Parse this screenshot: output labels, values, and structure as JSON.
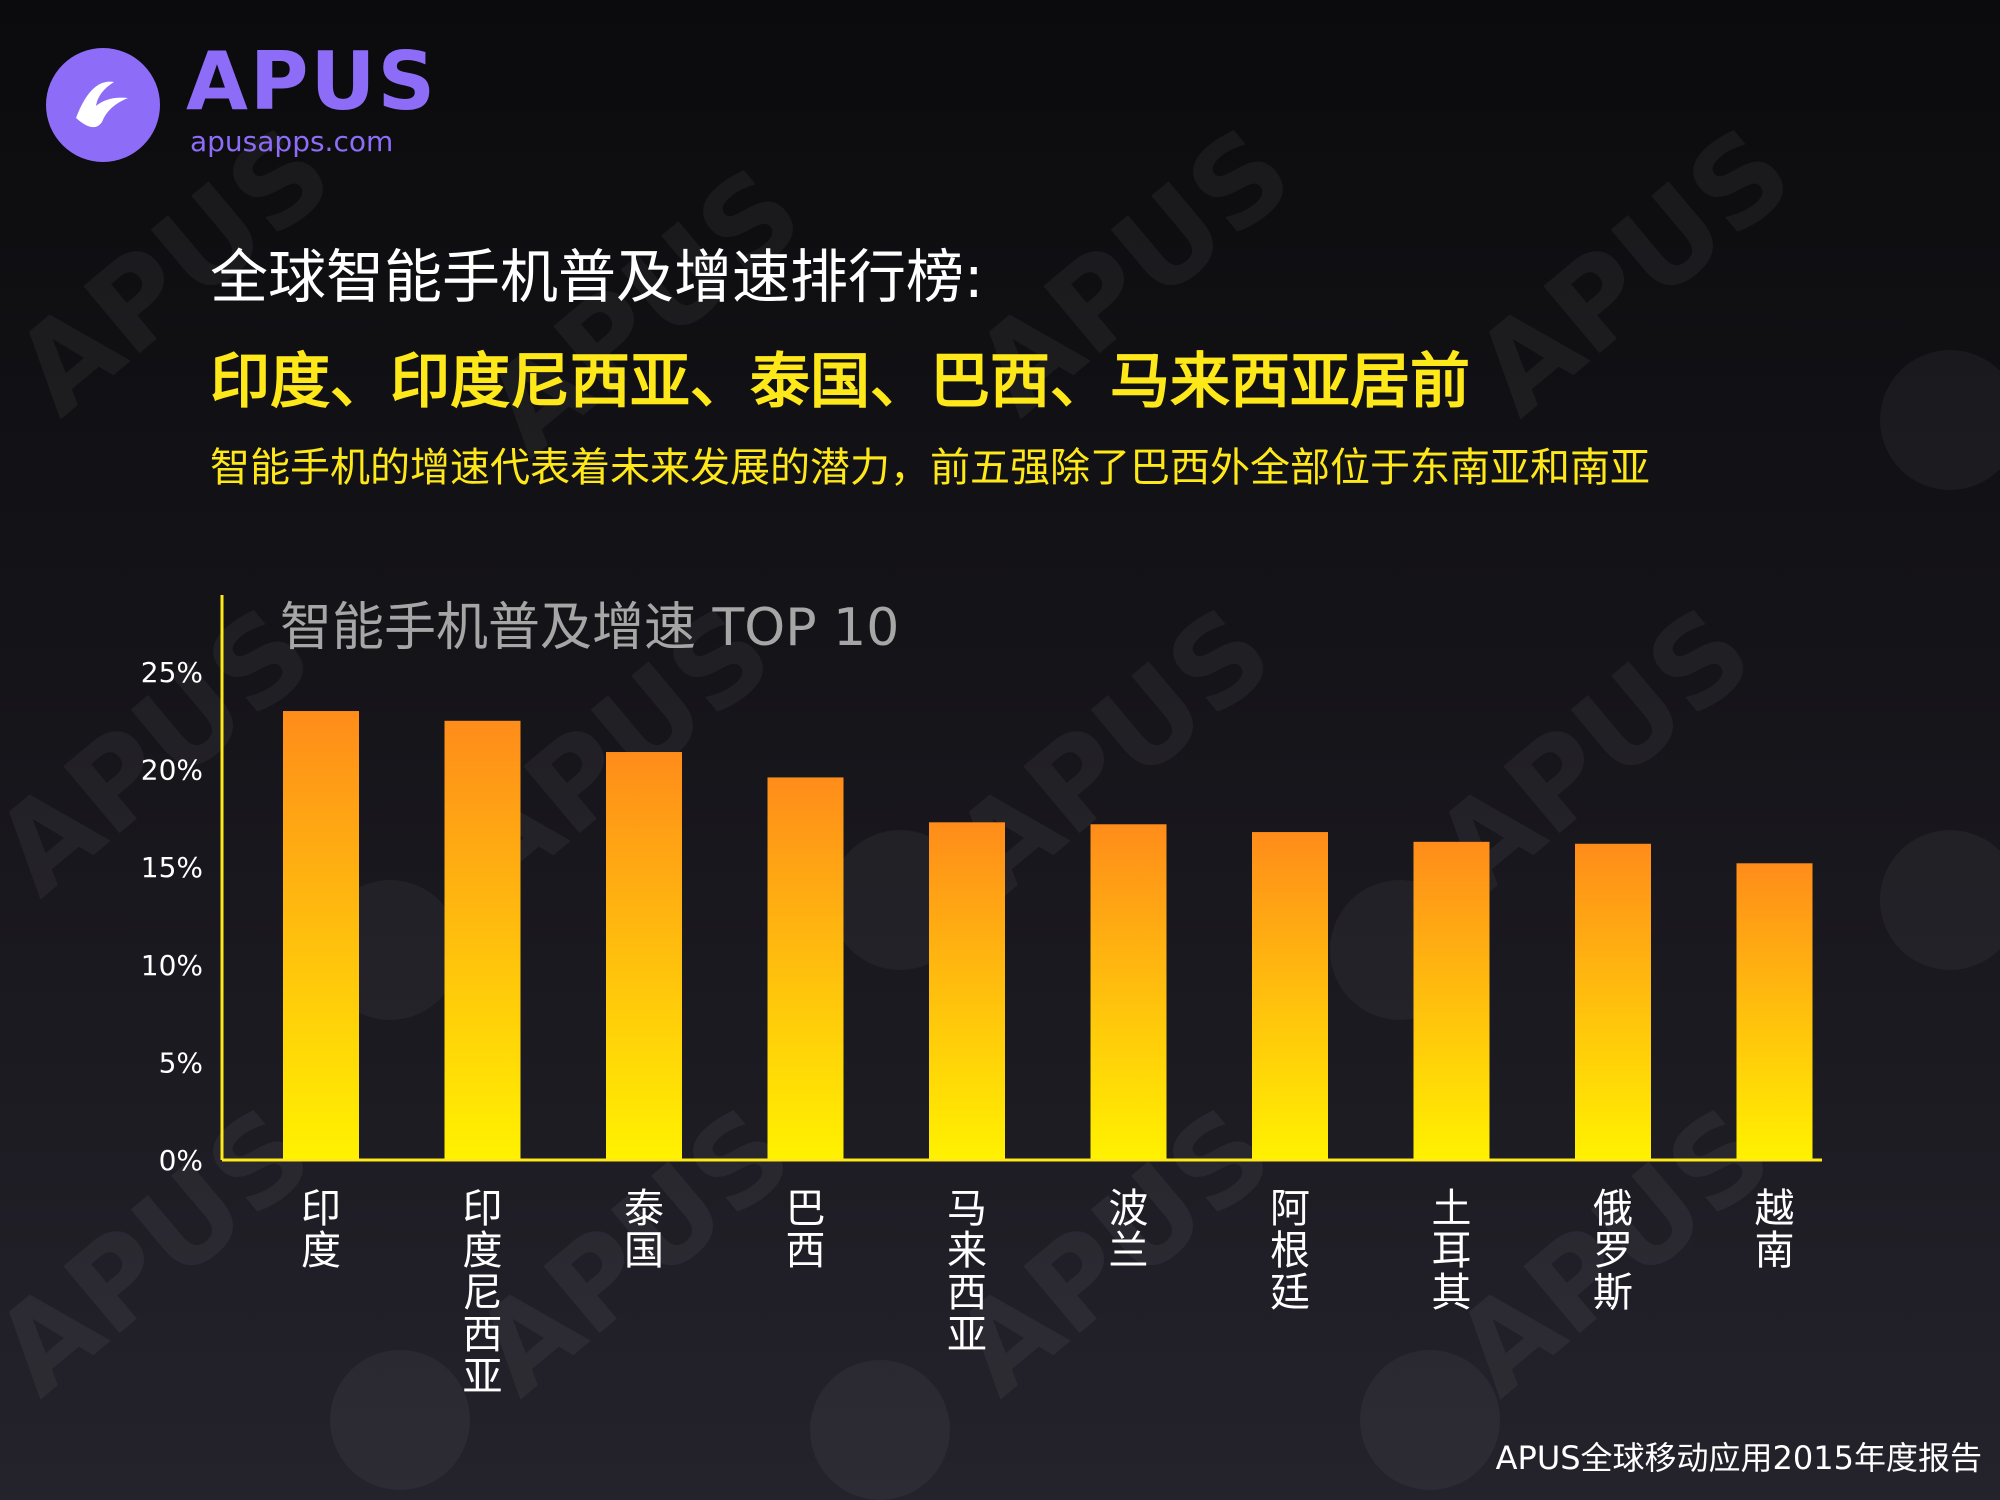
{
  "brand": {
    "name": "APUS",
    "url": "apusapps.com",
    "accent": "#8d6cf7"
  },
  "headline": "全球智能手机普及增速排行榜:",
  "subheadline": "印度、印度尼西亚、泰国、巴西、马来西亚居前",
  "description": "智能手机的增速代表着未来发展的潜力，前五强除了巴西外全部位于东南亚和南亚",
  "footer": "APUS全球移动应用2015年度报告",
  "chart_data": {
    "type": "bar",
    "title": "智能手机普及增速 TOP 10",
    "categories": [
      "印度",
      "印度尼西亚",
      "泰国",
      "巴西",
      "马来西亚",
      "波兰",
      "阿根廷",
      "土耳其",
      "俄罗斯",
      "越南"
    ],
    "values": [
      23.0,
      22.5,
      20.9,
      19.6,
      17.3,
      17.2,
      16.8,
      16.3,
      16.2,
      15.2
    ],
    "unit": "%",
    "ylim": [
      0,
      25
    ],
    "yticks": [
      "0%",
      "5%",
      "10%",
      "15%",
      "20%",
      "25%"
    ],
    "grid": false,
    "legend": "none",
    "colors": {
      "bar_top": "#ff8c1a",
      "bar_bottom": "#fff200",
      "axis": "#ffe81a",
      "title": "#a6a6a6",
      "tick": "#ffffff"
    }
  }
}
